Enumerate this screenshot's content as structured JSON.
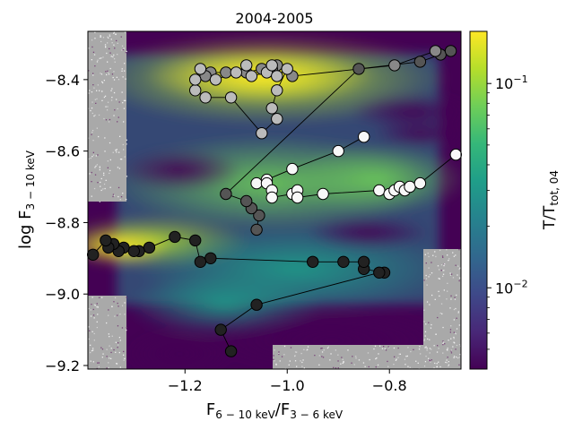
{
  "chart_data": {
    "type": "scatter",
    "title": "2004-2005",
    "xlabel": {
      "main": "F",
      "sub1": "6 − 10 keV",
      "mid": "/F",
      "sub2": "3 − 6 keV"
    },
    "ylabel": {
      "main": "log F",
      "sub": "3 − 10 keV"
    },
    "colorbar_label": {
      "main": "T/T",
      "sub": "tot, 04"
    },
    "xlim": [
      -1.39,
      -0.66
    ],
    "ylim": [
      -9.21,
      -8.265
    ],
    "xticks": [
      -1.2,
      -1.0,
      -0.8
    ],
    "xtick_labels": [
      "−1.2",
      "−1.0",
      "−0.8"
    ],
    "yticks": [
      -9.2,
      -9.0,
      -8.8,
      -8.6,
      -8.4
    ],
    "ytick_labels": [
      "−9.2",
      "−9.0",
      "−8.8",
      "−8.6",
      "−8.4"
    ],
    "colorbar": {
      "scale": "log",
      "range": [
        0.004,
        0.18
      ],
      "ticks": [
        {
          "value": 0.1,
          "label": "10",
          "exp": "−1"
        },
        {
          "value": 0.01,
          "label": "10",
          "exp": "−2"
        }
      ],
      "minor_ticks": [
        0.005,
        0.006,
        0.007,
        0.008,
        0.009,
        0.02,
        0.03,
        0.04,
        0.05,
        0.06,
        0.07,
        0.08,
        0.09
      ]
    },
    "colors": {
      "viridis": [
        "#440154",
        "#482878",
        "#3e4989",
        "#31688e",
        "#26828e",
        "#1f9e89",
        "#35b779",
        "#6ece58",
        "#b5de2b",
        "#fde725"
      ],
      "no_data": "#a9a9a9",
      "track_line": "#000000"
    },
    "series": [
      {
        "fill": "#222222",
        "points": [
          [
            -0.81,
            -8.94
          ],
          [
            -0.85,
            -8.93
          ],
          [
            -0.85,
            -8.91
          ],
          [
            -0.89,
            -8.91
          ],
          [
            -0.95,
            -8.91
          ],
          [
            -1.15,
            -8.9
          ],
          [
            -1.17,
            -8.91
          ],
          [
            -1.18,
            -8.85
          ],
          [
            -1.22,
            -8.84
          ],
          [
            -1.27,
            -8.87
          ],
          [
            -1.29,
            -8.88
          ],
          [
            -1.3,
            -8.88
          ],
          [
            -1.32,
            -8.87
          ],
          [
            -1.33,
            -8.88
          ],
          [
            -1.34,
            -8.86
          ],
          [
            -1.35,
            -8.87
          ],
          [
            -1.355,
            -8.85
          ],
          [
            -1.38,
            -8.89
          ]
        ]
      },
      {
        "fill": "#222222",
        "points": [
          [
            -0.82,
            -8.94
          ],
          [
            -1.06,
            -9.03
          ],
          [
            -1.13,
            -9.1
          ],
          [
            -1.11,
            -9.16
          ]
        ]
      },
      {
        "fill": "#555555",
        "points": [
          [
            -1.06,
            -8.82
          ],
          [
            -1.055,
            -8.78
          ],
          [
            -1.07,
            -8.76
          ],
          [
            -1.08,
            -8.74
          ],
          [
            -1.12,
            -8.72
          ],
          [
            -0.86,
            -8.37
          ],
          [
            -0.74,
            -8.35
          ],
          [
            -0.7,
            -8.33
          ],
          [
            -0.68,
            -8.32
          ]
        ]
      },
      {
        "fill": "#888888",
        "points": [
          [
            -0.71,
            -8.32
          ],
          [
            -0.79,
            -8.36
          ],
          [
            -0.99,
            -8.39
          ],
          [
            -1.02,
            -8.36
          ],
          [
            -1.03,
            -8.37
          ],
          [
            -1.05,
            -8.37
          ],
          [
            -1.08,
            -8.38
          ],
          [
            -1.12,
            -8.38
          ],
          [
            -1.15,
            -8.38
          ],
          [
            -1.16,
            -8.39
          ]
        ]
      },
      {
        "fill": "#bbbbbb",
        "points": [
          [
            -1.17,
            -8.37
          ],
          [
            -1.14,
            -8.4
          ],
          [
            -1.1,
            -8.38
          ],
          [
            -1.08,
            -8.36
          ],
          [
            -1.07,
            -8.39
          ],
          [
            -1.04,
            -8.38
          ],
          [
            -1.03,
            -8.36
          ],
          [
            -1.02,
            -8.39
          ],
          [
            -1.0,
            -8.37
          ],
          [
            -1.02,
            -8.43
          ],
          [
            -1.03,
            -8.48
          ],
          [
            -1.02,
            -8.51
          ],
          [
            -1.05,
            -8.55
          ],
          [
            -1.11,
            -8.45
          ],
          [
            -1.16,
            -8.45
          ],
          [
            -1.18,
            -8.43
          ],
          [
            -1.18,
            -8.4
          ]
        ]
      },
      {
        "fill": "#f8f8f8",
        "points": [
          [
            -0.85,
            -8.56
          ],
          [
            -0.9,
            -8.6
          ],
          [
            -0.99,
            -8.65
          ],
          [
            -1.04,
            -8.68
          ],
          [
            -1.06,
            -8.69
          ],
          [
            -1.04,
            -8.69
          ],
          [
            -1.03,
            -8.71
          ],
          [
            -1.03,
            -8.73
          ],
          [
            -0.99,
            -8.72
          ],
          [
            -0.98,
            -8.71
          ],
          [
            -0.98,
            -8.73
          ],
          [
            -0.93,
            -8.72
          ],
          [
            -0.82,
            -8.71
          ],
          [
            -0.8,
            -8.72
          ],
          [
            -0.79,
            -8.71
          ],
          [
            -0.78,
            -8.7
          ],
          [
            -0.77,
            -8.71
          ],
          [
            -0.76,
            -8.7
          ],
          [
            -0.74,
            -8.69
          ],
          [
            -0.67,
            -8.61
          ]
        ]
      }
    ]
  }
}
